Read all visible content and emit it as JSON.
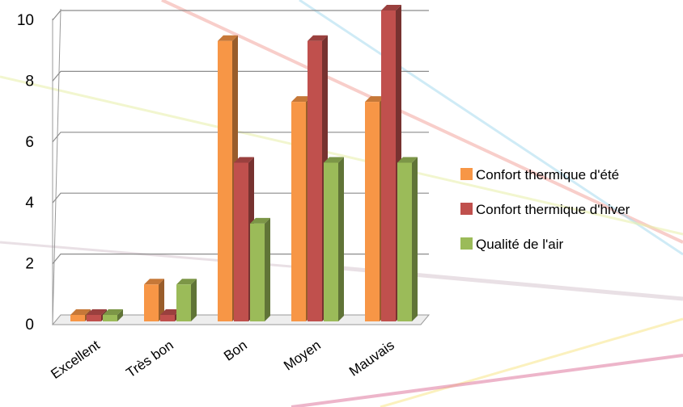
{
  "chart_data": {
    "type": "bar",
    "style": "3d-clustered-column",
    "categories": [
      "Excellent",
      "Très bon",
      "Bon",
      "Moyen",
      "Mauvais"
    ],
    "series": [
      {
        "name": "Confort thermique d'été",
        "color": "#f79646",
        "values": [
          0,
          1,
          9,
          7,
          7
        ]
      },
      {
        "name": "Confort thermique d'hiver",
        "color": "#c0504d",
        "values": [
          0,
          0,
          5,
          9,
          10
        ]
      },
      {
        "name": "Qualité de l'air",
        "color": "#9bbb59",
        "values": [
          0,
          1,
          3,
          5,
          5
        ]
      }
    ],
    "y_ticks": [
      "0",
      "2",
      "4",
      "6",
      "8",
      "10"
    ],
    "ylim": [
      0,
      10
    ],
    "grid": true,
    "legend_position": "right",
    "title": "",
    "xlabel": "",
    "ylabel": ""
  },
  "background_colors": [
    "#f4a7a0",
    "#a8dcef",
    "#e8f0a8",
    "#d8c8d0",
    "#f8e68a",
    "#e07aa0"
  ]
}
